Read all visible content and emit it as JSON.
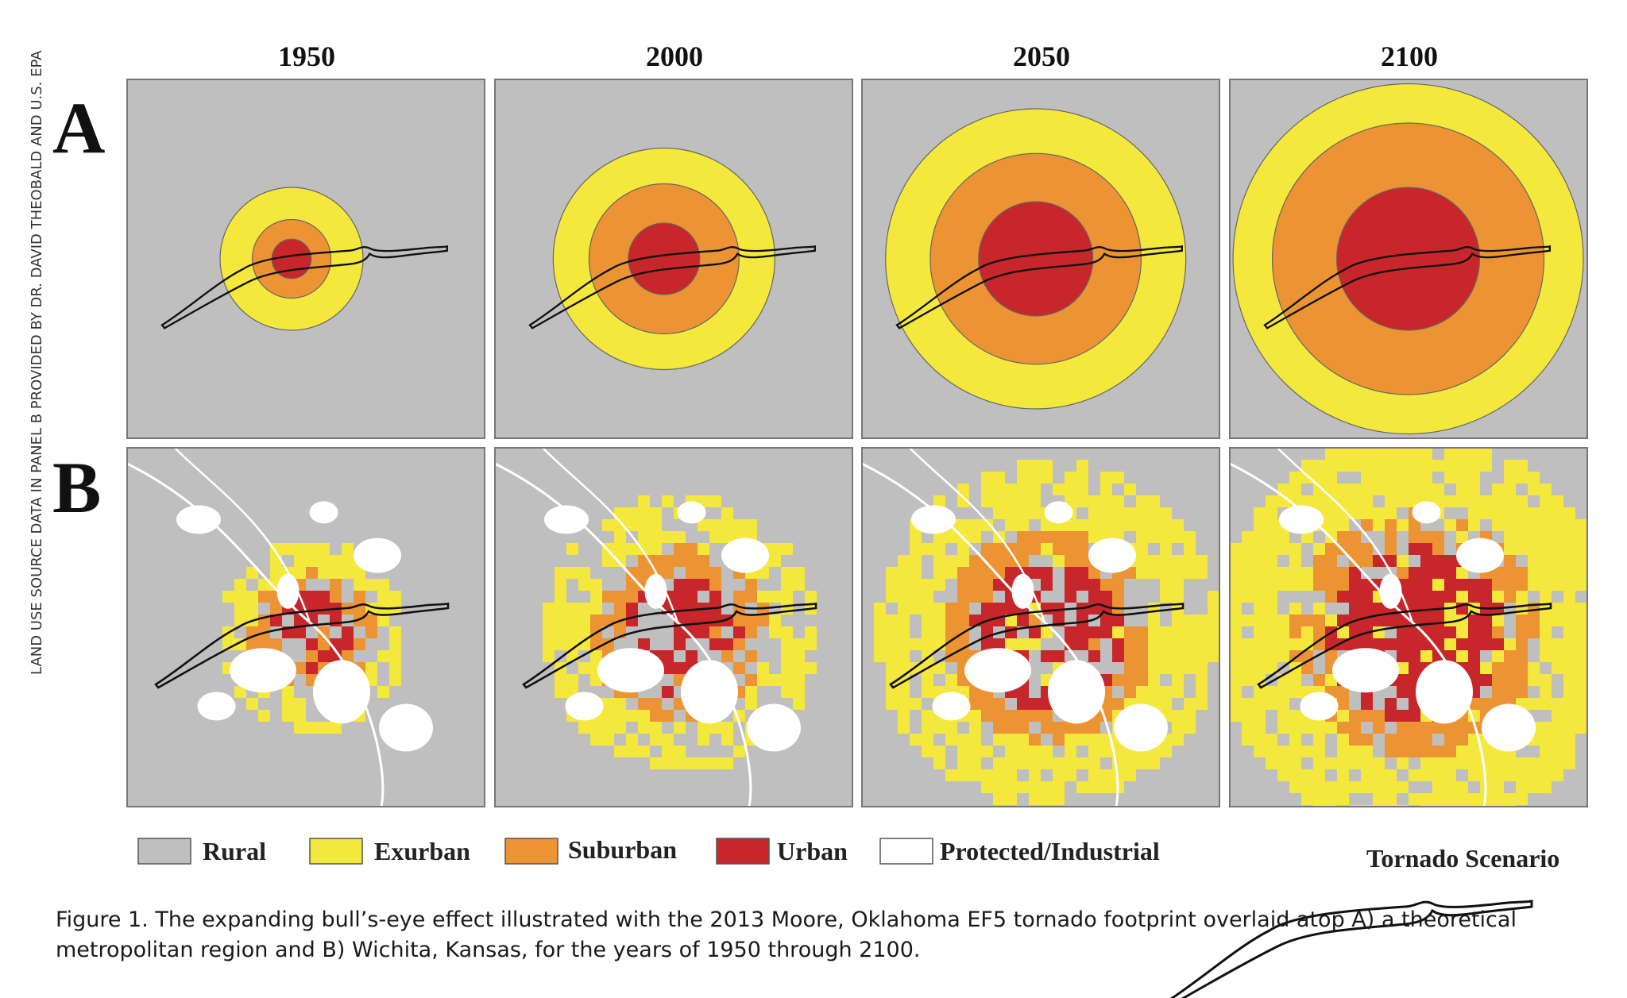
{
  "source_note": "LAND USE SOURCE DATA IN PANEL B PROVIDED BY DR. DAVID THEOBALD AND U.S. EPA",
  "years": [
    "1950",
    "2000",
    "2050",
    "2100"
  ],
  "panels": {
    "a_label": "A",
    "b_label": "B"
  },
  "rings_a": [
    {
      "year": "1950",
      "exurban": 0.4,
      "suburban": 0.22,
      "urban": 0.11
    },
    {
      "year": "2000",
      "exurban": 0.62,
      "suburban": 0.42,
      "urban": 0.2
    },
    {
      "year": "2050",
      "exurban": 0.84,
      "suburban": 0.59,
      "urban": 0.32
    },
    {
      "year": "2100",
      "exurban": 0.98,
      "suburban": 0.76,
      "urban": 0.4
    }
  ],
  "b_intensity": [
    0.3,
    0.55,
    0.75,
    0.92
  ],
  "legend": {
    "items": [
      {
        "label": "Rural",
        "color": "#bfbfbf"
      },
      {
        "label": "Exurban",
        "color": "#f5e83c"
      },
      {
        "label": "Suburban",
        "color": "#ec9433"
      },
      {
        "label": "Urban",
        "color": "#c7262a"
      },
      {
        "label": "Protected/Industrial",
        "color": "#ffffff"
      }
    ],
    "tornado_label": "Tornado Scenario"
  },
  "caption": "Figure 1. The expanding bull’s-eye effect illustrated with the 2013 Moore, Oklahoma EF5 tornado footprint overlaid atop A) a theoretical metropolitan region and B) Wichita, Kansas, for the years of 1950 through 2100."
}
